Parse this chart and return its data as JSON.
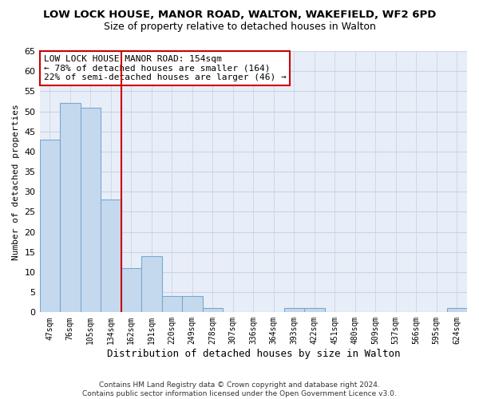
{
  "title": "LOW LOCK HOUSE, MANOR ROAD, WALTON, WAKEFIELD, WF2 6PD",
  "subtitle": "Size of property relative to detached houses in Walton",
  "xlabel": "Distribution of detached houses by size in Walton",
  "ylabel": "Number of detached properties",
  "categories": [
    "47sqm",
    "76sqm",
    "105sqm",
    "134sqm",
    "162sqm",
    "191sqm",
    "220sqm",
    "249sqm",
    "278sqm",
    "307sqm",
    "336sqm",
    "364sqm",
    "393sqm",
    "422sqm",
    "451sqm",
    "480sqm",
    "509sqm",
    "537sqm",
    "566sqm",
    "595sqm",
    "624sqm"
  ],
  "values": [
    43,
    52,
    51,
    28,
    11,
    14,
    4,
    4,
    1,
    0,
    0,
    0,
    1,
    1,
    0,
    0,
    0,
    0,
    0,
    0,
    1
  ],
  "bar_color": "#c5d9ee",
  "bar_edge_color": "#7aa8d0",
  "vline_index": 4,
  "vline_color": "#cc0000",
  "vline_label": "LOW LOCK HOUSE MANOR ROAD: 154sqm",
  "annotation_line2": "← 78% of detached houses are smaller (164)",
  "annotation_line3": "22% of semi-detached houses are larger (46) →",
  "box_edge_color": "#cc0000",
  "ylim": [
    0,
    65
  ],
  "yticks": [
    0,
    5,
    10,
    15,
    20,
    25,
    30,
    35,
    40,
    45,
    50,
    55,
    60,
    65
  ],
  "footer_line1": "Contains HM Land Registry data © Crown copyright and database right 2024.",
  "footer_line2": "Contains public sector information licensed under the Open Government Licence v3.0.",
  "grid_color": "#c8d4e8",
  "plot_bg_color": "#e8eef8"
}
